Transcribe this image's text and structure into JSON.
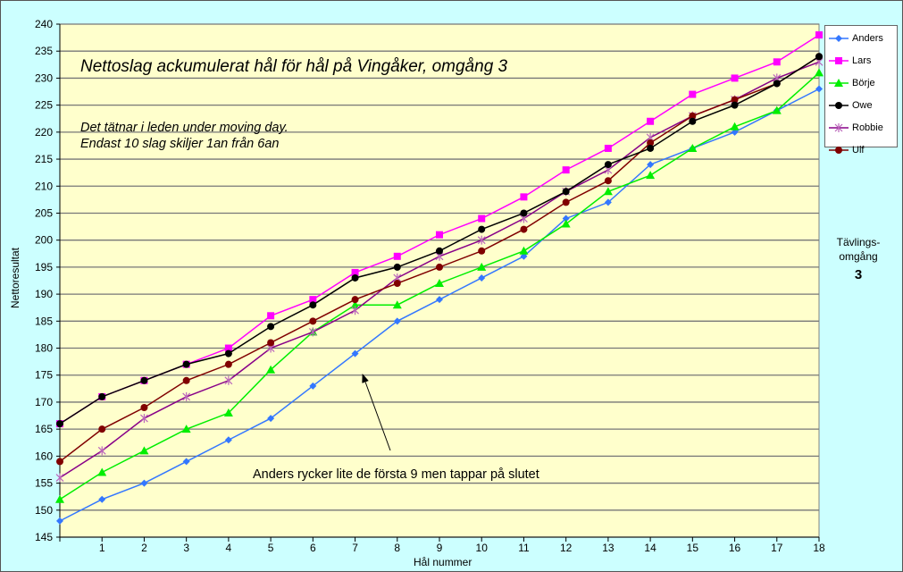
{
  "chart_data": {
    "type": "line",
    "title": "Nettoslag ackumulerat hål för hål på Vingåker, omgång 3",
    "subtitle_lines": [
      "Det tätnar i leden under moving day.",
      "Endast 10 slag skiljer 1an från 6an"
    ],
    "annotation": "Anders rycker lite de första 9 men tappar på slutet",
    "xlabel": "Hål nummer",
    "ylabel": "Nettoresultat",
    "side_label": [
      "Tävlings-",
      "omgång"
    ],
    "side_value": "3",
    "x": [
      0,
      1,
      2,
      3,
      4,
      5,
      6,
      7,
      8,
      9,
      10,
      11,
      12,
      13,
      14,
      15,
      16,
      17,
      18
    ],
    "x_tick_labels": [
      "1",
      "2",
      "3",
      "4",
      "5",
      "6",
      "7",
      "8",
      "9",
      "10",
      "11",
      "12",
      "13",
      "14",
      "15",
      "16",
      "17",
      "18"
    ],
    "ylim": [
      145,
      240
    ],
    "y_ticks": [
      145,
      150,
      155,
      160,
      165,
      170,
      175,
      180,
      185,
      190,
      195,
      200,
      205,
      210,
      215,
      220,
      225,
      230,
      235,
      240
    ],
    "grid": true,
    "legend_position": "right",
    "series": [
      {
        "name": "Anders",
        "color": "#3377ff",
        "marker": "diamond",
        "values": [
          148,
          152,
          155,
          159,
          163,
          167,
          173,
          179,
          185,
          189,
          193,
          197,
          204,
          207,
          214,
          217,
          220,
          224,
          228
        ]
      },
      {
        "name": "Lars",
        "color": "#ff00ff",
        "marker": "square",
        "values": [
          166,
          171,
          174,
          177,
          180,
          186,
          189,
          194,
          197,
          201,
          204,
          208,
          213,
          217,
          222,
          227,
          230,
          233,
          238
        ]
      },
      {
        "name": "Börje",
        "color": "#00ee00",
        "marker": "triangle",
        "values": [
          152,
          157,
          161,
          165,
          168,
          176,
          183,
          188,
          188,
          192,
          195,
          198,
          203,
          209,
          212,
          217,
          221,
          224,
          231
        ]
      },
      {
        "name": "Owe",
        "color": "#000000",
        "marker": "circle",
        "values": [
          166,
          171,
          174,
          177,
          179,
          184,
          188,
          193,
          195,
          198,
          202,
          205,
          209,
          214,
          217,
          222,
          225,
          229,
          234
        ]
      },
      {
        "name": "Robbie",
        "color": "#880088",
        "marker": "star",
        "values": [
          156,
          161,
          167,
          171,
          174,
          180,
          183,
          187,
          193,
          197,
          200,
          204,
          209,
          213,
          219,
          223,
          226,
          230,
          233
        ]
      },
      {
        "name": "Ulf",
        "color": "#800000",
        "marker": "circle",
        "values": [
          159,
          165,
          169,
          174,
          177,
          181,
          185,
          189,
          192,
          195,
          198,
          202,
          207,
          211,
          218,
          223,
          226,
          229,
          234
        ]
      }
    ]
  }
}
